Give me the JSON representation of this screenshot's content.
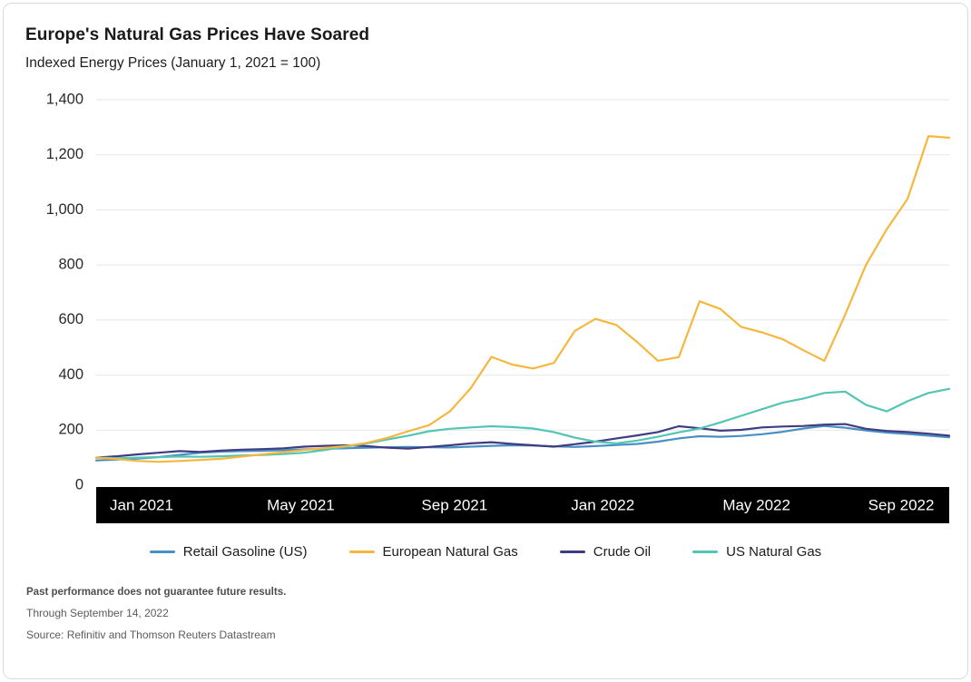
{
  "header": {
    "title": "Europe's Natural Gas Prices Have Soared",
    "subtitle": "Indexed Energy Prices (January 1, 2021 = 100)"
  },
  "chart_data": {
    "type": "line",
    "title": "Europe's Natural Gas Prices Have Soared",
    "subtitle": "Indexed Energy Prices (January 1, 2021 = 100)",
    "x_unit": "half-month steps from Jan 1 2021 through Sep 14 2022",
    "x_tick_labels": [
      "Jan 2021",
      "May 2021",
      "Sep 2021",
      "Jan 2022",
      "May 2022",
      "Sep 2022"
    ],
    "x_tick_indices": [
      0,
      8,
      16,
      24,
      32,
      40
    ],
    "ylim": [
      0,
      1400
    ],
    "yticks": [
      0,
      200,
      400,
      600,
      800,
      1000,
      1200,
      1400
    ],
    "ytick_labels": [
      "0",
      "200",
      "400",
      "600",
      "800",
      "1,000",
      "1,200",
      "1,400"
    ],
    "grid": true,
    "legend_position": "bottom",
    "colors": {
      "retail_gasoline": "#4A8FC3",
      "european_natural_gas": "#F5B73E",
      "crude_oil": "#3F3C80",
      "us_natural_gas": "#52C5B5",
      "axis_band": "#000000",
      "axis_band_text": "#ffffff",
      "gridline": "#e7e7e7"
    },
    "series": [
      {
        "name": "Retail Gasoline (US)",
        "color": "#4A8FC3",
        "values": [
          90,
          93,
          97,
          102,
          110,
          118,
          122,
          124,
          125,
          127,
          130,
          132,
          134,
          136,
          138,
          139,
          138,
          137,
          140,
          143,
          145,
          144,
          141,
          139,
          142,
          146,
          150,
          158,
          170,
          178,
          176,
          179,
          185,
          194,
          206,
          215,
          209,
          199,
          191,
          186,
          180,
          174
        ]
      },
      {
        "name": "European Natural Gas",
        "color": "#F5B73E",
        "values": [
          100,
          95,
          88,
          85,
          88,
          92,
          96,
          104,
          112,
          120,
          128,
          135,
          142,
          154,
          172,
          196,
          218,
          268,
          352,
          466,
          438,
          424,
          444,
          560,
          604,
          582,
          520,
          452,
          465,
          668,
          640,
          575,
          555,
          530,
          490,
          452,
          620,
          800,
          930,
          1040,
          1268,
          1262
        ]
      },
      {
        "name": "Crude Oil",
        "color": "#3F3C80",
        "values": [
          100,
          105,
          112,
          118,
          124,
          121,
          126,
          129,
          131,
          134,
          140,
          143,
          145,
          142,
          136,
          133,
          139,
          145,
          152,
          156,
          150,
          145,
          140,
          149,
          158,
          170,
          181,
          193,
          214,
          207,
          198,
          201,
          210,
          213,
          215,
          220,
          222,
          205,
          197,
          193,
          187,
          180
        ]
      },
      {
        "name": "US Natural Gas",
        "color": "#52C5B5",
        "values": [
          100,
          98,
          100,
          102,
          104,
          103,
          105,
          108,
          110,
          113,
          118,
          128,
          140,
          152,
          166,
          180,
          196,
          205,
          210,
          214,
          211,
          206,
          193,
          173,
          158,
          152,
          162,
          176,
          192,
          206,
          228,
          252,
          276,
          300,
          315,
          335,
          340,
          292,
          268,
          305,
          335,
          350
        ]
      }
    ]
  },
  "footer": {
    "disclaimer": "Past performance does not guarantee future results.",
    "through": "Through September 14, 2022",
    "source": "Source: Refinitiv and Thomson Reuters Datastream"
  }
}
